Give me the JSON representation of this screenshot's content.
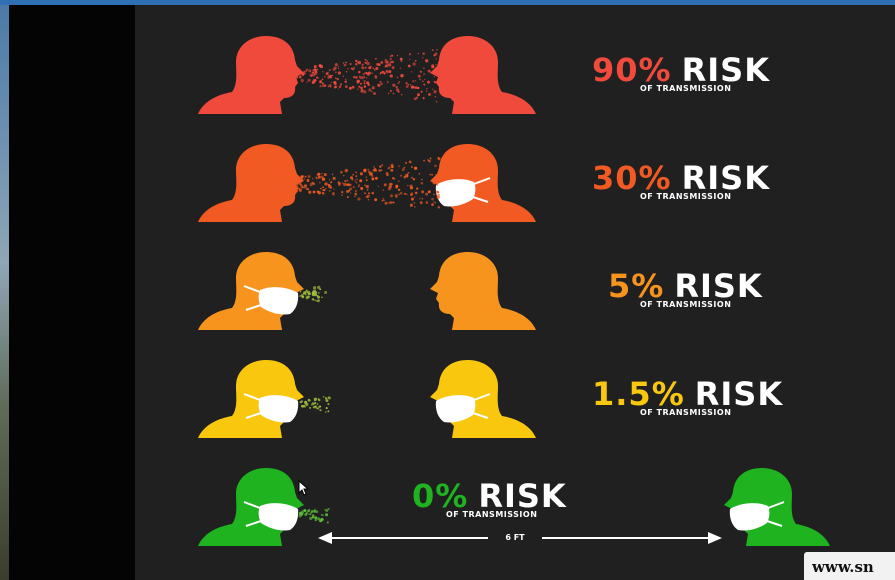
{
  "rows": [
    {
      "percent": "90%",
      "word": "RISK",
      "subtitle": "OF TRANSMISSION",
      "color": "#ef4a3c"
    },
    {
      "percent": "30%",
      "word": "RISK",
      "subtitle": "OF TRANSMISSION",
      "color": "#f15a22"
    },
    {
      "percent": "5%",
      "word": "RISK",
      "subtitle": "OF TRANSMISSION",
      "color": "#f7941d"
    },
    {
      "percent": "1.5%",
      "word": "RISK",
      "subtitle": "OF TRANSMISSION",
      "color": "#f9c80e"
    },
    {
      "percent": "0%",
      "word": "RISK",
      "subtitle": "OF TRANSMISSION",
      "color": "#1fb31f"
    }
  ],
  "distance": {
    "label": "6 FT"
  },
  "watermark": {
    "text": "www.sn"
  },
  "icons": {
    "cursor": "mouse-pointer-icon",
    "arrow": "double-arrow-icon"
  }
}
